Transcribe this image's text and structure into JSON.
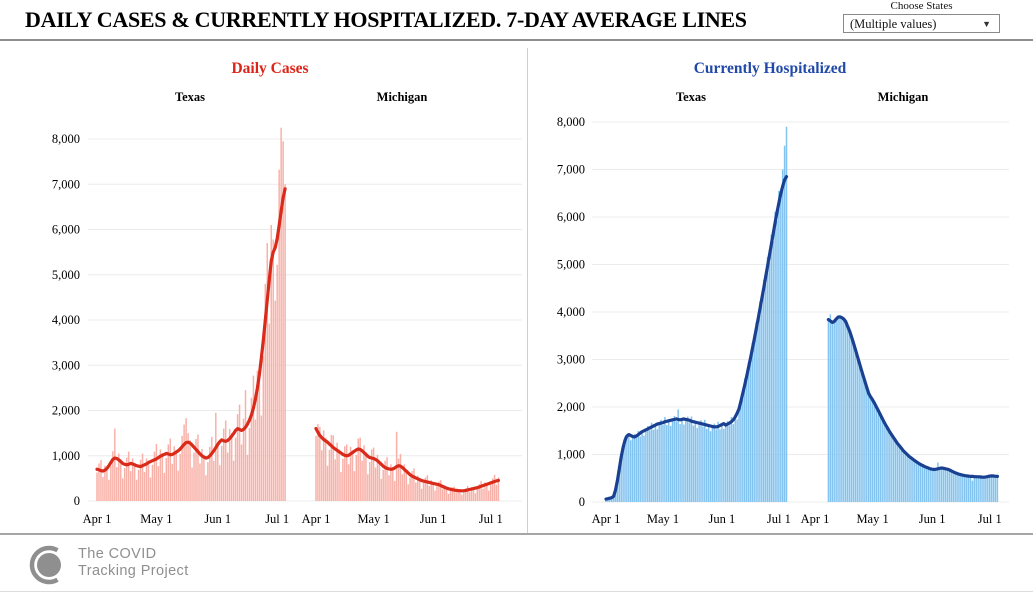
{
  "header": {
    "title": "DAILY CASES & CURRENTLY HOSPITALIZED. 7-DAY AVERAGE LINES",
    "filter_label": "Choose States",
    "filter_value": "(Multiple values)"
  },
  "footer": {
    "logo_line1": "The COVID",
    "logo_line2": "Tracking Project"
  },
  "colors": {
    "grid": "#ececec",
    "divider": "#8f8f8f",
    "logo_gray": "#8f8f8f",
    "red_title": "#dd2418",
    "blue_title": "#2149a8"
  },
  "chart_data": [
    {
      "type": "bar+line",
      "title": "Daily Cases",
      "title_color": "#dd2418",
      "bar_color": "#f8b1a8",
      "line_color": "#d92a1a",
      "ylim": [
        0,
        8000
      ],
      "yticks": [
        0,
        1000,
        2000,
        3000,
        4000,
        5000,
        6000,
        7000,
        8000
      ],
      "xticks": [
        {
          "label": "Apr 1",
          "day": 0
        },
        {
          "label": "May 1",
          "day": 30
        },
        {
          "label": "Jun 1",
          "day": 61
        },
        {
          "label": "Jul 1",
          "day": 91
        }
      ],
      "panels": [
        {
          "name": "Texas",
          "start_day": 0,
          "bars": [
            630,
            830,
            905,
            530,
            780,
            760,
            470,
            770,
            1100,
            1600,
            750,
            1050,
            910,
            500,
            730,
            960,
            1090,
            660,
            940,
            840,
            470,
            690,
            910,
            1050,
            640,
            940,
            890,
            520,
            800,
            1090,
            1260,
            770,
            1140,
            1060,
            620,
            950,
            1250,
            1380,
            820,
            1210,
            1130,
            670,
            1040,
            1440,
            1690,
            1830,
            1500,
            1340,
            740,
            1070,
            1370,
            1470,
            830,
            1150,
            1020,
            570,
            860,
            1200,
            1420,
            890,
            1950,
            1310,
            790,
            1220,
            1600,
            1780,
            1070,
            1590,
            1500,
            890,
            1400,
            1920,
            2130,
            1250,
            1820,
            2450,
            1020,
            1610,
            2280,
            2770,
            1800,
            2880,
            2940,
            1890,
            3200,
            4800,
            5700,
            3920,
            6100,
            5780,
            4430,
            5220,
            7320,
            8250,
            7950,
            7000
          ],
          "avg": [
            700,
            690,
            670,
            660,
            680,
            720,
            780,
            850,
            920,
            950,
            940,
            910,
            870,
            830,
            810,
            800,
            810,
            830,
            820,
            800,
            780,
            770,
            760,
            780,
            800,
            820,
            850,
            870,
            890,
            910,
            930,
            960,
            990,
            1010,
            1030,
            1050,
            1040,
            1020,
            1030,
            1050,
            1080,
            1110,
            1150,
            1200,
            1250,
            1290,
            1300,
            1280,
            1240,
            1190,
            1140,
            1090,
            1040,
            1000,
            970,
            950,
            960,
            1000,
            1050,
            1110,
            1180,
            1250,
            1310,
            1350,
            1330,
            1320,
            1340,
            1380,
            1430,
            1490,
            1560,
            1600,
            1580,
            1560,
            1580,
            1630,
            1700,
            1790,
            1900,
            2050,
            2250,
            2500,
            2800,
            3150,
            3550,
            4000,
            4450,
            4900,
            5300,
            5500,
            5600,
            5800,
            6100,
            6400,
            6700,
            6900
          ]
        },
        {
          "name": "Michigan",
          "start_day": 0,
          "bars": [
            1440,
            1700,
            1640,
            1120,
            1560,
            1400,
            780,
            1130,
            1460,
            1450,
            920,
            1290,
            1140,
            640,
            930,
            1210,
            1250,
            810,
            1200,
            1120,
            660,
            1020,
            1380,
            1400,
            890,
            1230,
            1080,
            590,
            860,
            1140,
            1180,
            740,
            1020,
            890,
            490,
            690,
            890,
            970,
            570,
            810,
            750,
            440,
            1530,
            940,
            1040,
            590,
            810,
            690,
            370,
            520,
            660,
            720,
            410,
            560,
            490,
            270,
            400,
            520,
            570,
            330,
            460,
            410,
            230,
            330,
            430,
            460,
            260,
            350,
            300,
            160,
            230,
            300,
            320,
            190,
            260,
            240,
            140,
            210,
            280,
            330,
            200,
            300,
            290,
            170,
            270,
            370,
            440,
            270,
            410,
            390,
            230,
            360,
            500,
            580,
            360,
            520
          ],
          "avg": [
            1600,
            1520,
            1450,
            1400,
            1360,
            1330,
            1300,
            1260,
            1220,
            1180,
            1150,
            1120,
            1090,
            1060,
            1030,
            1010,
            1000,
            1010,
            1040,
            1070,
            1100,
            1130,
            1150,
            1140,
            1110,
            1070,
            1030,
            990,
            960,
            950,
            940,
            920,
            890,
            850,
            810,
            770,
            740,
            720,
            710,
            700,
            710,
            730,
            760,
            780,
            770,
            740,
            700,
            660,
            620,
            580,
            550,
            530,
            510,
            490,
            470,
            450,
            440,
            430,
            420,
            410,
            400,
            390,
            380,
            370,
            360,
            340,
            320,
            300,
            285,
            270,
            260,
            250,
            240,
            235,
            230,
            228,
            225,
            228,
            235,
            245,
            255,
            265,
            275,
            285,
            295,
            310,
            325,
            340,
            355,
            370,
            385,
            400,
            415,
            430,
            445,
            455
          ]
        }
      ]
    },
    {
      "type": "bar+line",
      "title": "Currently Hospitalized",
      "title_color": "#2149a8",
      "bar_color": "#83c3ef",
      "line_color": "#1a4191",
      "ylim": [
        0,
        8000
      ],
      "yticks": [
        0,
        1000,
        2000,
        3000,
        4000,
        5000,
        6000,
        7000,
        8000
      ],
      "xticks": [
        {
          "label": "Apr 1",
          "day": 0
        },
        {
          "label": "May 1",
          "day": 30
        },
        {
          "label": "Jun 1",
          "day": 61
        },
        {
          "label": "Jul 1",
          "day": 91
        }
      ],
      "panels": [
        {
          "name": "Texas",
          "start_day": 0,
          "bars": [
            60,
            75,
            80,
            95,
            115,
            260,
            420,
            700,
            990,
            1120,
            1380,
            1320,
            1450,
            1300,
            1380,
            1430,
            1350,
            1500,
            1380,
            1510,
            1400,
            1520,
            1600,
            1510,
            1670,
            1520,
            1650,
            1530,
            1650,
            1730,
            1620,
            1790,
            1620,
            1740,
            1600,
            1730,
            1810,
            1700,
            1950,
            1640,
            1780,
            1630,
            1740,
            1800,
            1670,
            1800,
            1610,
            1710,
            1560,
            1660,
            1720,
            1590,
            1730,
            1540,
            1640,
            1490,
            1590,
            1650,
            1530,
            1690,
            1530,
            1660,
            1540,
            1620,
            1700,
            1610,
            1790,
            1640,
            1830,
            1740,
            1960,
            2200,
            2220,
            2600,
            2560,
            2950,
            2930,
            3350,
            3320,
            3780,
            3730,
            4220,
            4160,
            4680,
            4590,
            5160,
            5040,
            5630,
            5490,
            6110,
            5920,
            6550,
            6390,
            7000,
            7500,
            7900
          ],
          "avg": [
            60,
            70,
            80,
            90,
            120,
            250,
            450,
            700,
            950,
            1150,
            1300,
            1390,
            1420,
            1400,
            1380,
            1370,
            1390,
            1420,
            1450,
            1480,
            1500,
            1520,
            1540,
            1560,
            1580,
            1600,
            1620,
            1640,
            1650,
            1660,
            1670,
            1690,
            1700,
            1710,
            1720,
            1730,
            1740,
            1750,
            1740,
            1730,
            1740,
            1750,
            1740,
            1730,
            1720,
            1700,
            1690,
            1680,
            1670,
            1660,
            1650,
            1640,
            1630,
            1620,
            1610,
            1600,
            1590,
            1580,
            1580,
            1590,
            1610,
            1630,
            1650,
            1620,
            1640,
            1660,
            1690,
            1730,
            1790,
            1870,
            1960,
            2120,
            2290,
            2460,
            2640,
            2830,
            3020,
            3220,
            3420,
            3630,
            3840,
            4060,
            4280,
            4500,
            4730,
            4960,
            5190,
            5420,
            5650,
            5880,
            6100,
            6300,
            6490,
            6650,
            6780,
            6850
          ]
        },
        {
          "name": "Michigan",
          "start_day": 7,
          "bars": [
            3830,
            3950,
            3760,
            3830,
            3820,
            3930,
            3870,
            3900,
            3820,
            3830,
            3650,
            3640,
            3420,
            3380,
            3150,
            3110,
            2870,
            2830,
            2600,
            2570,
            2350,
            2320,
            2160,
            2180,
            2020,
            2040,
            1860,
            1880,
            1710,
            1720,
            1560,
            1580,
            1420,
            1450,
            1300,
            1330,
            1190,
            1210,
            1090,
            1110,
            1000,
            1030,
            920,
            950,
            860,
            890,
            810,
            840,
            760,
            790,
            720,
            750,
            690,
            720,
            660,
            700,
            670,
            830,
            680,
            730,
            690,
            720,
            660,
            690,
            630,
            650,
            590,
            620,
            560,
            590,
            545,
            570,
            530,
            560,
            520,
            450,
            550,
            510,
            545,
            505,
            540,
            500,
            540,
            515,
            560,
            530,
            560,
            520,
            550
          ],
          "avg": [
            3840,
            3810,
            3780,
            3800,
            3850,
            3890,
            3900,
            3880,
            3850,
            3800,
            3700,
            3600,
            3480,
            3350,
            3220,
            3080,
            2940,
            2800,
            2670,
            2540,
            2410,
            2280,
            2210,
            2150,
            2080,
            2000,
            1920,
            1840,
            1760,
            1680,
            1610,
            1540,
            1470,
            1410,
            1350,
            1290,
            1230,
            1180,
            1130,
            1080,
            1040,
            1000,
            960,
            930,
            900,
            870,
            840,
            815,
            790,
            770,
            750,
            730,
            715,
            700,
            690,
            685,
            690,
            700,
            710,
            715,
            710,
            700,
            690,
            675,
            655,
            635,
            615,
            600,
            585,
            575,
            565,
            555,
            550,
            545,
            540,
            538,
            535,
            532,
            530,
            528,
            525,
            523,
            528,
            535,
            545,
            550,
            548,
            542,
            538
          ]
        }
      ]
    }
  ]
}
